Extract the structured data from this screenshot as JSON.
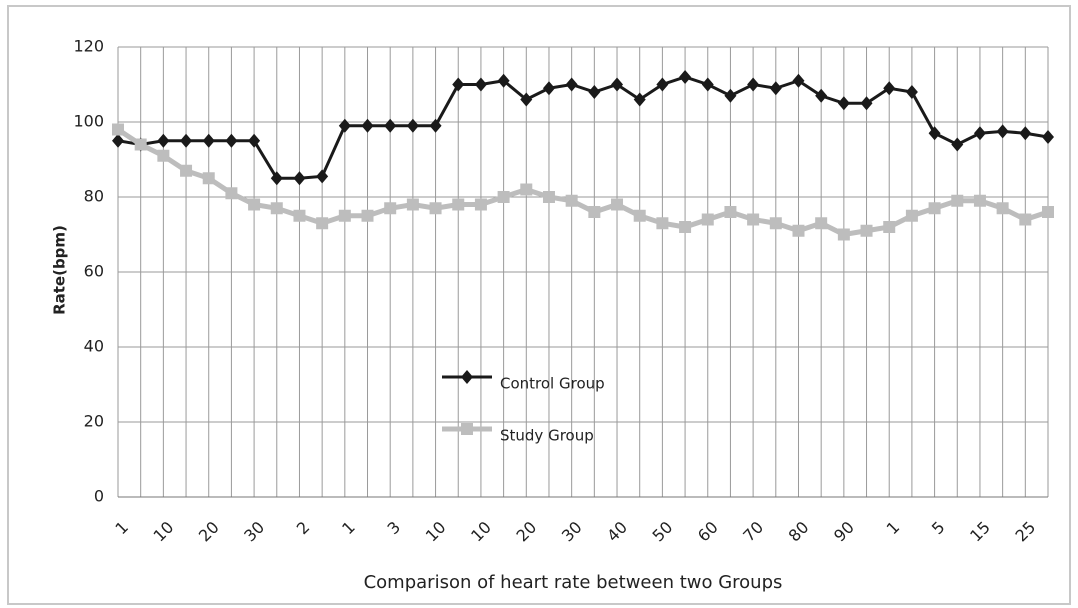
{
  "chart_data": {
    "type": "line",
    "y_label": "Rate(bpm)",
    "x_label": "Comparison of heart rate between two Groups",
    "categories": [
      "1",
      null,
      "10",
      null,
      "20",
      null,
      "30",
      null,
      "2",
      null,
      "1",
      null,
      "3",
      null,
      "10",
      null,
      "10",
      null,
      "20",
      null,
      "30",
      null,
      "40",
      null,
      "50",
      null,
      "60",
      null,
      "70",
      null,
      "80",
      null,
      "90",
      null,
      "1",
      null,
      "5",
      null,
      "15",
      null,
      "25",
      null
    ],
    "series": [
      {
        "name": "Control Group",
        "color": "#1a1a1a",
        "marker": "diamond",
        "values": [
          95,
          94,
          95,
          95,
          95,
          95,
          95,
          85,
          85,
          85.5,
          99,
          99,
          99,
          99,
          99,
          110,
          110,
          111,
          106,
          109,
          110,
          108,
          110,
          106,
          110,
          112,
          110,
          107,
          110,
          109,
          111,
          107,
          105,
          105,
          109,
          108,
          97,
          94,
          97,
          97.5,
          97,
          96
        ]
      },
      {
        "name": "Study Group",
        "color": "#bdbdbd",
        "marker": "square",
        "values": [
          98,
          94,
          91,
          87,
          85,
          81,
          78,
          77,
          75,
          73,
          75,
          75,
          77,
          78,
          77,
          78,
          78,
          80,
          82,
          80,
          79,
          76,
          78,
          75,
          73,
          72,
          74,
          76,
          74,
          73,
          71,
          73,
          70,
          71,
          72,
          75,
          77,
          79,
          79,
          77,
          74,
          76
        ]
      }
    ],
    "ylim": [
      0,
      120
    ],
    "yticks": [
      0,
      20,
      40,
      60,
      80,
      100,
      120
    ],
    "grid": true
  }
}
